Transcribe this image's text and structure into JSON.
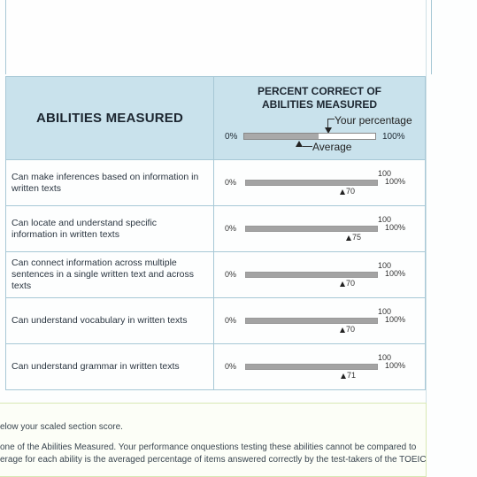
{
  "header": {
    "abilities_title": "ABILITIES MEASURED",
    "percent_title_line1": "PERCENT CORRECT OF",
    "percent_title_line2": "ABILITIES MEASURED",
    "legend_your": "Your percentage",
    "legend_average": "Average",
    "legend_zero": "0%",
    "legend_hundred": "100%"
  },
  "rows": [
    {
      "label_line1": "Can make inferences based on information in",
      "label_line2": "written texts",
      "zero": "0%",
      "max_top": "100",
      "max": "100%",
      "average": "70",
      "your_pct": 100
    },
    {
      "label_line1": "Can locate and understand specific",
      "label_line2": "information in written texts",
      "zero": "0%",
      "max_top": "100",
      "max": "100%",
      "average": "75",
      "your_pct": 100
    },
    {
      "label_line1": "Can connect information across multiple",
      "label_line2": "sentences in a single written text and across",
      "label_line3": "texts",
      "zero": "0%",
      "max_top": "100",
      "max": "100%",
      "average": "70",
      "your_pct": 100
    },
    {
      "label_line1": "Can understand vocabulary in written texts",
      "zero": "0%",
      "max_top": "100",
      "max": "100%",
      "average": "70",
      "your_pct": 100
    },
    {
      "label_line1": "Can understand grammar in written texts",
      "zero": "0%",
      "max_top": "100",
      "max": "100%",
      "average": "71",
      "your_pct": 100
    }
  ],
  "footer": {
    "line1": "elow your scaled section score.",
    "line2": "one of the Abilities Measured. Your performance onquestions testing these abilities cannot be compared to",
    "line3": "erage for each ability is the averaged percentage of items answered correctly by the test-takers of the TOEIC"
  }
}
